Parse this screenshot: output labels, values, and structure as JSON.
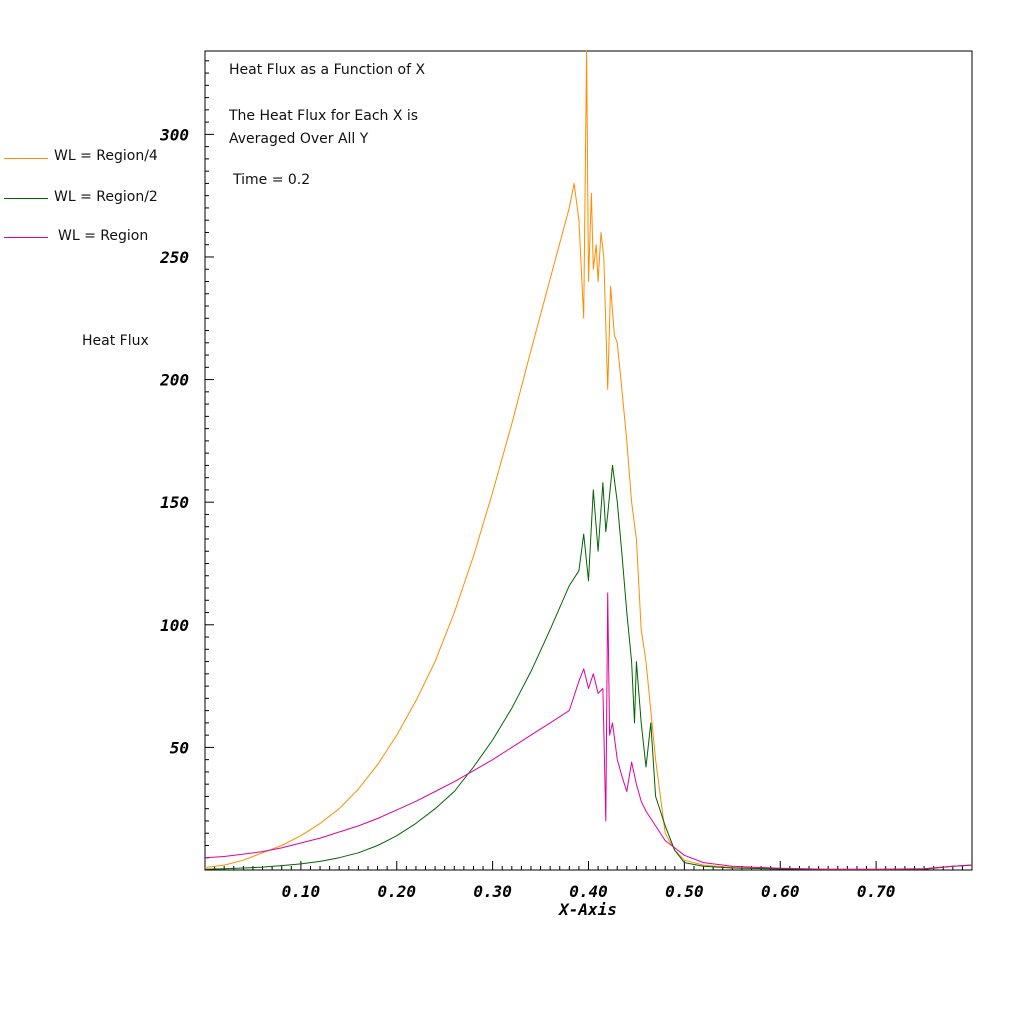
{
  "chart_data": {
    "type": "line",
    "xlabel": "X-Axis",
    "ylabel": "Heat Flux",
    "xlim": [
      0.0,
      0.8
    ],
    "ylim": [
      0,
      334
    ],
    "x_ticks": [
      0.1,
      0.2,
      0.3,
      0.4,
      0.5,
      0.6,
      0.7
    ],
    "x_tick_labels": [
      "0.10",
      "0.20",
      "0.30",
      "0.40",
      "0.50",
      "0.60",
      "0.70"
    ],
    "y_ticks": [
      50,
      100,
      150,
      200,
      250,
      300
    ],
    "y_tick_labels": [
      "50",
      "100",
      "150",
      "200",
      "250",
      "300"
    ],
    "annotations": [
      "Heat Flux as a Function of X",
      "The Heat Flux for Each X is",
      "Averaged Over All Y",
      "Time = 0.2"
    ],
    "legend_position": "left",
    "series": [
      {
        "name": "WL = Region/4",
        "color": "#FF8C00",
        "x": [
          0.0,
          0.02,
          0.04,
          0.06,
          0.08,
          0.1,
          0.12,
          0.14,
          0.16,
          0.18,
          0.2,
          0.22,
          0.24,
          0.26,
          0.28,
          0.3,
          0.32,
          0.34,
          0.36,
          0.38,
          0.385,
          0.39,
          0.395,
          0.398,
          0.4,
          0.403,
          0.405,
          0.408,
          0.41,
          0.413,
          0.416,
          0.42,
          0.423,
          0.427,
          0.43,
          0.435,
          0.44,
          0.445,
          0.45,
          0.455,
          0.46,
          0.465,
          0.47,
          0.475,
          0.48,
          0.49,
          0.5,
          0.52,
          0.55,
          0.6,
          0.65,
          0.7,
          0.75,
          0.78,
          0.8
        ],
        "y": [
          1,
          2,
          4,
          7,
          10,
          14,
          19,
          25,
          33,
          43,
          55,
          69,
          85,
          105,
          128,
          154,
          182,
          212,
          241,
          270,
          280,
          265,
          225,
          334,
          240,
          276,
          245,
          255,
          240,
          260,
          250,
          196,
          238,
          218,
          215,
          195,
          175,
          150,
          135,
          98,
          85,
          65,
          45,
          30,
          15,
          8,
          4,
          2,
          1,
          0.5,
          0.3,
          0.3,
          0.5,
          1.5,
          2
        ]
      },
      {
        "name": "WL = Region/2",
        "color": "#006400",
        "x": [
          0.0,
          0.02,
          0.04,
          0.06,
          0.08,
          0.1,
          0.12,
          0.14,
          0.16,
          0.18,
          0.2,
          0.22,
          0.24,
          0.26,
          0.28,
          0.3,
          0.32,
          0.34,
          0.36,
          0.38,
          0.39,
          0.395,
          0.4,
          0.405,
          0.41,
          0.415,
          0.418,
          0.42,
          0.425,
          0.43,
          0.435,
          0.44,
          0.445,
          0.448,
          0.45,
          0.455,
          0.46,
          0.465,
          0.47,
          0.48,
          0.49,
          0.5,
          0.52,
          0.55,
          0.6,
          0.65,
          0.7,
          0.75,
          0.78,
          0.8
        ],
        "y": [
          0.3,
          0.5,
          0.8,
          1.2,
          1.8,
          2.5,
          3.5,
          5,
          7,
          10,
          14,
          19,
          25,
          32,
          42,
          53,
          66,
          81,
          98,
          116,
          122,
          137,
          118,
          155,
          130,
          158,
          138,
          145,
          165,
          150,
          128,
          105,
          85,
          60,
          85,
          60,
          42,
          60,
          30,
          18,
          8,
          3,
          1.5,
          0.8,
          0.4,
          0.2,
          0.2,
          0.3,
          1.5,
          2
        ]
      },
      {
        "name": "WL = Region",
        "color": "#E000A0",
        "x": [
          0.0,
          0.02,
          0.04,
          0.06,
          0.08,
          0.1,
          0.12,
          0.14,
          0.16,
          0.18,
          0.2,
          0.22,
          0.24,
          0.26,
          0.28,
          0.3,
          0.32,
          0.34,
          0.36,
          0.38,
          0.39,
          0.395,
          0.4,
          0.405,
          0.41,
          0.415,
          0.418,
          0.42,
          0.422,
          0.425,
          0.43,
          0.435,
          0.44,
          0.445,
          0.45,
          0.455,
          0.46,
          0.47,
          0.48,
          0.49,
          0.5,
          0.52,
          0.55,
          0.6,
          0.65,
          0.7,
          0.75,
          0.78,
          0.8
        ],
        "y": [
          5,
          5.5,
          6.5,
          7.5,
          9,
          11,
          13,
          15.5,
          18,
          21,
          24.5,
          28,
          32,
          36,
          40.5,
          45,
          50,
          55,
          60,
          65,
          77,
          82,
          74,
          80,
          72,
          74,
          20,
          113,
          55,
          60,
          45,
          38,
          32,
          44,
          35,
          28,
          24,
          18,
          12,
          9,
          6,
          3,
          1.5,
          0.7,
          0.3,
          0.3,
          0.5,
          1.5,
          2
        ]
      }
    ]
  }
}
